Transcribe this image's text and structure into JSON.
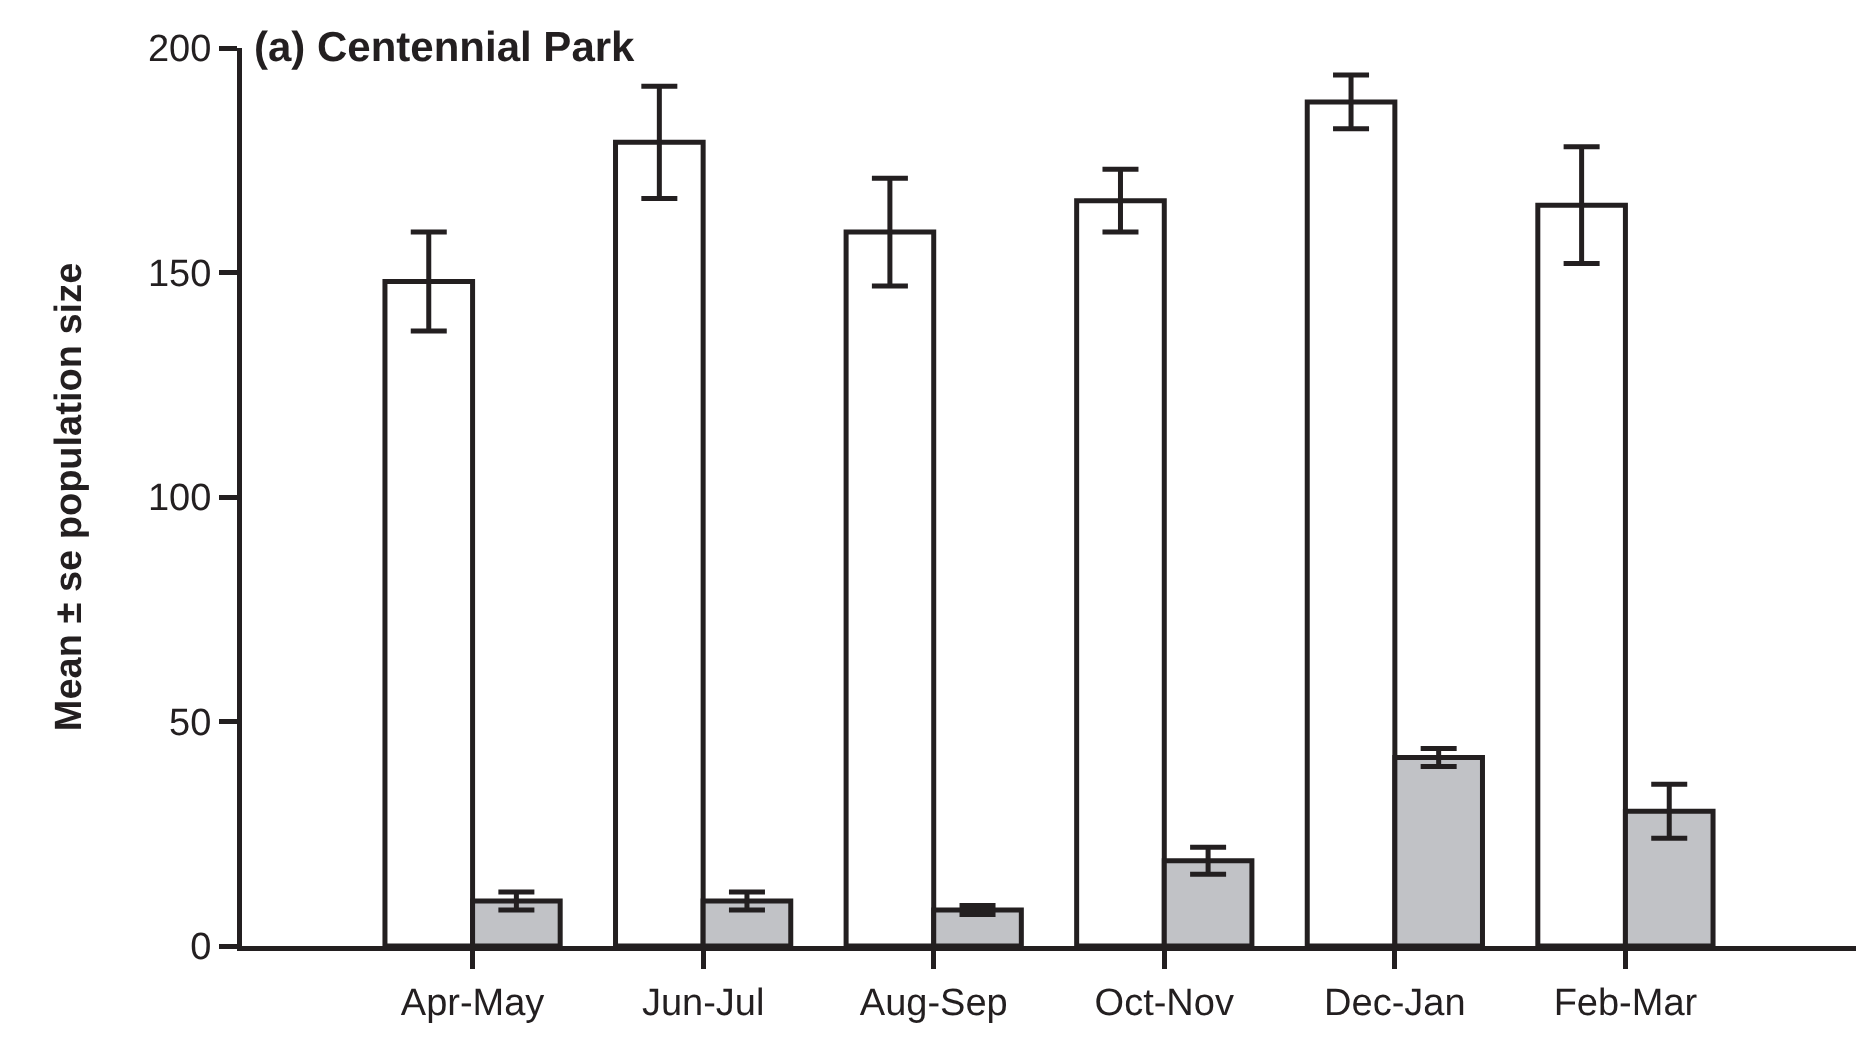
{
  "chart_data": {
    "type": "bar",
    "title": "(a) Centennial Park",
    "ylabel": "Mean ± se population size",
    "categories": [
      "Apr-May",
      "Jun-Jul",
      "Aug-Sep",
      "Oct-Nov",
      "Dec-Jan",
      "Feb-Mar"
    ],
    "series": [
      {
        "color": "#ffffff",
        "values": [
          148,
          179,
          159,
          166,
          188,
          165
        ],
        "errors": [
          11,
          12.5,
          12,
          7,
          6,
          13
        ]
      },
      {
        "color": "#c1c2c6",
        "values": [
          10,
          10,
          8,
          19,
          42,
          30
        ],
        "errors": [
          2,
          2,
          1,
          3,
          2,
          6
        ]
      }
    ],
    "ylim": [
      0,
      200
    ],
    "yticks": [
      0,
      50,
      100,
      150,
      200
    ],
    "grid": false
  }
}
